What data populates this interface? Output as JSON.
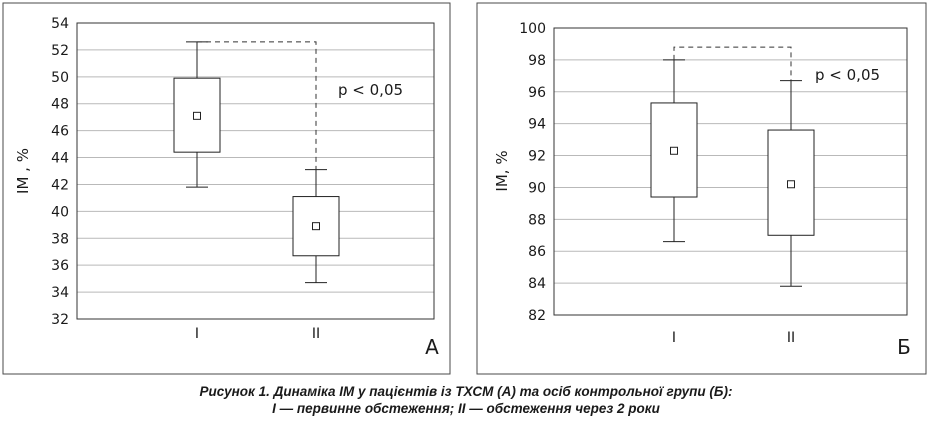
{
  "chart_data": [
    {
      "type": "box",
      "panel_label": "А",
      "ylabel": "ІМ , %",
      "ylim": [
        32,
        54
      ],
      "yticks": [
        32,
        34,
        36,
        38,
        40,
        42,
        44,
        46,
        48,
        50,
        52,
        54
      ],
      "categories": [
        "І",
        "ІІ"
      ],
      "boxes": [
        {
          "category": "І",
          "whisker_low": 41.8,
          "q1": 44.4,
          "median": 47.1,
          "q3": 49.9,
          "whisker_high": 52.6
        },
        {
          "category": "ІІ",
          "whisker_low": 34.7,
          "q1": 36.7,
          "median": 38.9,
          "q3": 41.1,
          "whisker_high": 43.1
        }
      ],
      "significance": {
        "text": "p < 0,05",
        "bracket_level": 52.6
      },
      "grid": true
    },
    {
      "type": "box",
      "panel_label": "Б",
      "ylabel": "ІМ, %",
      "ylim": [
        82,
        100
      ],
      "yticks": [
        82,
        84,
        86,
        88,
        90,
        92,
        94,
        96,
        98,
        100
      ],
      "categories": [
        "І",
        "ІІ"
      ],
      "boxes": [
        {
          "category": "І",
          "whisker_low": 86.6,
          "q1": 89.4,
          "median": 92.3,
          "q3": 95.3,
          "whisker_high": 98.0
        },
        {
          "category": "ІІ",
          "whisker_low": 83.8,
          "q1": 87.0,
          "median": 90.2,
          "q3": 93.6,
          "whisker_high": 96.7
        }
      ],
      "significance": {
        "text": "p < 0,05",
        "bracket_level": 98.8
      },
      "grid": true
    }
  ],
  "caption": {
    "line1": "Рисунок 1. Динаміка ІМ у пацієнтів із ТХСМ (А) та осіб контрольної групи (Б):",
    "line2": "І — первинне обстеження; ІІ — обстеження через 2 роки"
  }
}
